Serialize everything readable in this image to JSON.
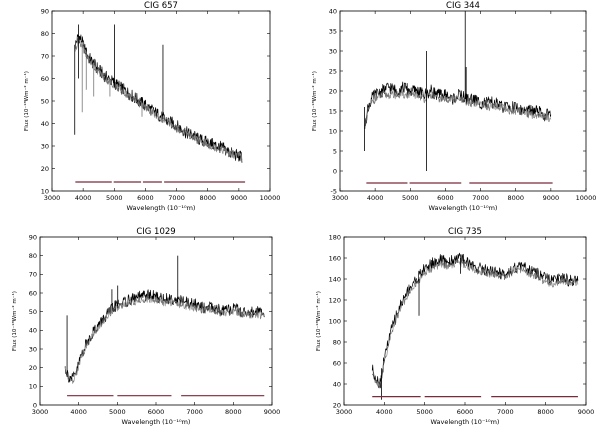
{
  "figure": {
    "panels_label": "CIG optical spectra"
  },
  "chart_data": [
    {
      "type": "line",
      "title": "CIG 657",
      "xlabel": "Wavelength (10⁻¹⁰m)",
      "ylabel": "Flux (10⁻¹⁸Wm⁻² m⁻¹)",
      "xlim": [
        3000,
        10000
      ],
      "ylim": [
        10,
        90
      ],
      "xticks": [
        3000,
        4000,
        5000,
        6000,
        7000,
        8000,
        9000,
        10000
      ],
      "yticks": [
        10,
        20,
        30,
        40,
        50,
        60,
        70,
        80,
        90
      ],
      "series": [
        {
          "role": "observed",
          "color": "#000000",
          "x": [
            3750,
            3850,
            3950,
            4050,
            4150,
            4300,
            4500,
            4700,
            4900,
            5100,
            5300,
            5500,
            5700,
            5900,
            6100,
            6300,
            6500,
            6700,
            6900,
            7100,
            7300,
            7500,
            7700,
            7900,
            8100,
            8300,
            8500,
            8700,
            8900,
            9100
          ],
          "y": [
            75,
            79,
            77,
            73,
            70,
            67,
            64,
            61,
            59,
            57,
            55,
            53,
            51,
            49,
            47,
            45,
            43,
            41,
            40,
            38,
            36,
            35,
            33,
            32,
            31,
            30,
            29,
            27,
            26,
            25
          ]
        },
        {
          "role": "model",
          "color": "#777777",
          "x": [
            3750,
            3850,
            3950,
            4050,
            4150,
            4300,
            4500,
            4700,
            4900,
            5100,
            5300,
            5500,
            5700,
            5900,
            6100,
            6300,
            6500,
            6700,
            6900,
            7100,
            7300,
            7500,
            7700,
            7900,
            8100,
            8300,
            8500,
            8700,
            8900,
            9100
          ],
          "y": [
            73,
            77,
            75,
            72,
            69,
            66,
            63,
            60,
            58,
            56,
            54,
            52,
            50,
            48,
            46,
            44,
            42,
            41,
            39,
            37,
            36,
            34,
            33,
            31,
            30,
            29,
            28,
            27,
            26,
            25
          ]
        }
      ],
      "spikes": [
        {
          "x": 3730,
          "y0": 35,
          "y1": 75,
          "color": "#000000"
        },
        {
          "x": 3850,
          "y0": 60,
          "y1": 84,
          "color": "#000000"
        },
        {
          "x": 3970,
          "y0": 45,
          "y1": 76,
          "color": "#777777"
        },
        {
          "x": 4100,
          "y0": 55,
          "y1": 72,
          "color": "#777777"
        },
        {
          "x": 4340,
          "y0": 52,
          "y1": 67,
          "color": "#777777"
        },
        {
          "x": 4860,
          "y0": 52,
          "y1": 60,
          "color": "#777777"
        },
        {
          "x": 5010,
          "y0": 56,
          "y1": 84,
          "color": "#000000"
        },
        {
          "x": 5890,
          "y0": 43,
          "y1": 49,
          "color": "#777777"
        },
        {
          "x": 6563,
          "y0": 42,
          "y1": 75,
          "color": "#000000"
        }
      ],
      "mask_segments": [
        [
          3750,
          4920
        ],
        [
          4980,
          5860
        ],
        [
          5920,
          6530
        ],
        [
          6600,
          9200
        ]
      ],
      "mask_level": 14,
      "mask_color": "#7a2a3a"
    },
    {
      "type": "line",
      "title": "CIG 344",
      "xlabel": "Wavelength (10⁻¹⁰m)",
      "ylabel": "Flux (10⁻¹⁸Wm⁻² m⁻¹)",
      "xlim": [
        3000,
        10000
      ],
      "ylim": [
        -5,
        40
      ],
      "xticks": [
        3000,
        4000,
        5000,
        6000,
        7000,
        8000,
        9000,
        10000
      ],
      "yticks": [
        -5,
        0,
        5,
        10,
        15,
        20,
        25,
        30,
        35,
        40
      ],
      "series": [
        {
          "role": "observed",
          "color": "#000000",
          "x": [
            3700,
            3800,
            3900,
            4000,
            4200,
            4400,
            4600,
            4800,
            5000,
            5200,
            5400,
            5600,
            5800,
            6000,
            6200,
            6400,
            6600,
            6800,
            7000,
            7200,
            7400,
            7600,
            7800,
            8000,
            8200,
            8400,
            8600,
            8800,
            9000
          ],
          "y": [
            11,
            16,
            18,
            19,
            20,
            21,
            20,
            21,
            20,
            20,
            19,
            20,
            19,
            19,
            18,
            19,
            18,
            18,
            17,
            17,
            17,
            16,
            16,
            16,
            15,
            15,
            15,
            14,
            14
          ]
        },
        {
          "role": "model",
          "color": "#777777",
          "x": [
            3700,
            3800,
            3900,
            4000,
            4200,
            4400,
            4600,
            4800,
            5000,
            5200,
            5400,
            5600,
            5800,
            6000,
            6200,
            6400,
            6600,
            6800,
            7000,
            7200,
            7400,
            7600,
            7800,
            8000,
            8200,
            8400,
            8600,
            8800,
            9000
          ],
          "y": [
            11,
            15,
            17,
            18,
            19,
            19,
            19,
            19,
            19,
            19,
            18,
            19,
            18,
            18,
            18,
            18,
            17,
            17,
            17,
            16,
            16,
            16,
            15,
            15,
            15,
            14,
            14,
            14,
            13
          ]
        }
      ],
      "spikes": [
        {
          "x": 3700,
          "y0": 5,
          "y1": 16,
          "color": "#000000"
        },
        {
          "x": 5460,
          "y0": 0,
          "y1": 30,
          "color": "#000000"
        },
        {
          "x": 6563,
          "y0": 18,
          "y1": 40,
          "color": "#000000"
        },
        {
          "x": 6590,
          "y0": 18,
          "y1": 26,
          "color": "#000000"
        }
      ],
      "mask_segments": [
        [
          3750,
          4920
        ],
        [
          4980,
          6450
        ],
        [
          6680,
          9050
        ]
      ],
      "mask_level": -3,
      "mask_color": "#7a2a3a"
    },
    {
      "type": "line",
      "title": "CIG 1029",
      "xlabel": "Wavelength (10⁻¹⁰m)",
      "ylabel": "Flux (10⁻¹⁸Wm⁻² m⁻¹)",
      "xlim": [
        3000,
        9000
      ],
      "ylim": [
        0,
        90
      ],
      "xticks": [
        3000,
        4000,
        5000,
        6000,
        7000,
        8000,
        9000
      ],
      "yticks": [
        0,
        10,
        20,
        30,
        40,
        50,
        60,
        70,
        80,
        90
      ],
      "series": [
        {
          "role": "observed",
          "color": "#000000",
          "x": [
            3650,
            3750,
            3850,
            3950,
            4050,
            4200,
            4400,
            4600,
            4800,
            5000,
            5200,
            5400,
            5600,
            5800,
            6000,
            6200,
            6400,
            6600,
            6800,
            7000,
            7200,
            7400,
            7600,
            7800,
            8000,
            8200,
            8400,
            8600,
            8800
          ],
          "y": [
            20,
            15,
            14,
            18,
            26,
            33,
            40,
            45,
            50,
            54,
            55,
            57,
            58,
            59,
            58,
            57,
            57,
            56,
            55,
            54,
            52,
            53,
            51,
            50,
            52,
            50,
            49,
            50,
            49
          ]
        },
        {
          "role": "model",
          "color": "#777777",
          "x": [
            3650,
            3750,
            3850,
            3950,
            4050,
            4200,
            4400,
            4600,
            4800,
            5000,
            5200,
            5400,
            5600,
            5800,
            6000,
            6200,
            6400,
            6600,
            6800,
            7000,
            7200,
            7400,
            7600,
            7800,
            8000,
            8200,
            8400,
            8600,
            8800
          ],
          "y": [
            19,
            14,
            13,
            17,
            24,
            32,
            39,
            44,
            49,
            52,
            54,
            55,
            56,
            57,
            56,
            55,
            55,
            54,
            53,
            52,
            51,
            51,
            50,
            49,
            50,
            49,
            48,
            48,
            48
          ]
        }
      ],
      "spikes": [
        {
          "x": 3700,
          "y0": 15,
          "y1": 48,
          "color": "#000000"
        },
        {
          "x": 4860,
          "y0": 50,
          "y1": 62,
          "color": "#000000"
        },
        {
          "x": 5010,
          "y0": 52,
          "y1": 64,
          "color": "#000000"
        },
        {
          "x": 6563,
          "y0": 55,
          "y1": 80,
          "color": "#000000"
        }
      ],
      "mask_segments": [
        [
          3700,
          4900
        ],
        [
          5000,
          6400
        ],
        [
          6650,
          8800
        ]
      ],
      "mask_level": 5,
      "mask_color": "#7a2a3a"
    },
    {
      "type": "line",
      "title": "CIG 735",
      "xlabel": "Wavelength (10⁻¹⁰m)",
      "ylabel": "Flux (10⁻¹⁸Wm⁻² m⁻¹)",
      "xlim": [
        3000,
        9000
      ],
      "ylim": [
        20,
        180
      ],
      "xticks": [
        3000,
        4000,
        5000,
        6000,
        7000,
        8000,
        9000
      ],
      "yticks": [
        20,
        40,
        60,
        80,
        100,
        120,
        140,
        160,
        180
      ],
      "series": [
        {
          "role": "observed",
          "color": "#000000",
          "x": [
            3700,
            3800,
            3900,
            4000,
            4100,
            4200,
            4400,
            4600,
            4800,
            5000,
            5200,
            5400,
            5600,
            5800,
            6000,
            6200,
            6400,
            6600,
            6800,
            7000,
            7200,
            7400,
            7600,
            7800,
            8000,
            8200,
            8400,
            8600,
            8800
          ],
          "y": [
            55,
            45,
            40,
            65,
            80,
            95,
            115,
            130,
            140,
            150,
            155,
            158,
            156,
            160,
            158,
            152,
            150,
            148,
            146,
            145,
            150,
            152,
            148,
            145,
            140,
            138,
            142,
            138,
            140
          ]
        },
        {
          "role": "model",
          "color": "#777777",
          "x": [
            3700,
            3800,
            3900,
            4000,
            4100,
            4200,
            4400,
            4600,
            4800,
            5000,
            5200,
            5400,
            5600,
            5800,
            6000,
            6200,
            6400,
            6600,
            6800,
            7000,
            7200,
            7400,
            7600,
            7800,
            8000,
            8200,
            8400,
            8600,
            8800
          ],
          "y": [
            50,
            42,
            38,
            62,
            76,
            92,
            112,
            126,
            136,
            146,
            150,
            154,
            152,
            156,
            154,
            149,
            147,
            145,
            143,
            142,
            147,
            149,
            145,
            142,
            137,
            135,
            139,
            136,
            137
          ]
        }
      ],
      "spikes": [
        {
          "x": 3930,
          "y0": 25,
          "y1": 55,
          "color": "#000000"
        },
        {
          "x": 4860,
          "y0": 105,
          "y1": 140,
          "color": "#000000"
        },
        {
          "x": 5170,
          "y0": 150,
          "y1": 158,
          "color": "#000000"
        },
        {
          "x": 5890,
          "y0": 145,
          "y1": 160,
          "color": "#000000"
        }
      ],
      "mask_segments": [
        [
          3700,
          4900
        ],
        [
          5000,
          6400
        ],
        [
          6650,
          8800
        ]
      ],
      "mask_level": 28,
      "mask_color": "#7a2a3a"
    }
  ]
}
